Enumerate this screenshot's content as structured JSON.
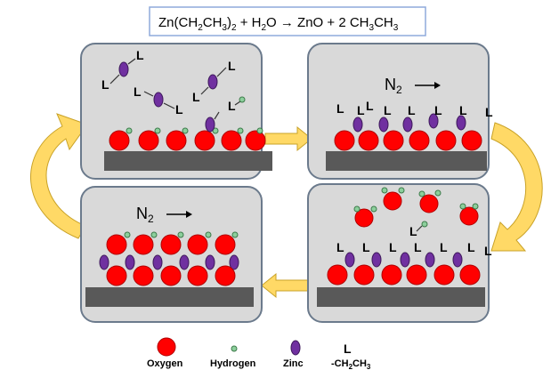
{
  "equation": {
    "zn": "Zn",
    "lp1": "(CH",
    "s1": "2",
    "ch": "CH",
    "s2": "3",
    "rp": ")",
    "s3": "2",
    "plus1": " + H",
    "s4": "2",
    "o_arrow": "O → ZnO + 2 CH",
    "s5": "3",
    "ch2": "CH",
    "s6": "3"
  },
  "ligand_label": "L",
  "gas": {
    "n": "N",
    "sub": "2",
    "arrow": "→"
  },
  "legend": {
    "oxygen": "Oxygen",
    "hydrogen": "Hydrogen",
    "zinc": "Zinc",
    "ligand_symbol": "L",
    "ligand_name_a": "-CH",
    "ligand_sub_a": "2",
    "ligand_name_b": "CH",
    "ligand_sub_b": "3"
  },
  "colors": {
    "oxygen": "#ff0000",
    "hydrogen": "#8ccf9c",
    "zinc": "#7030a0",
    "substrate": "#595959",
    "panel": "#d9d9d9",
    "arrow": "#ffd966"
  }
}
